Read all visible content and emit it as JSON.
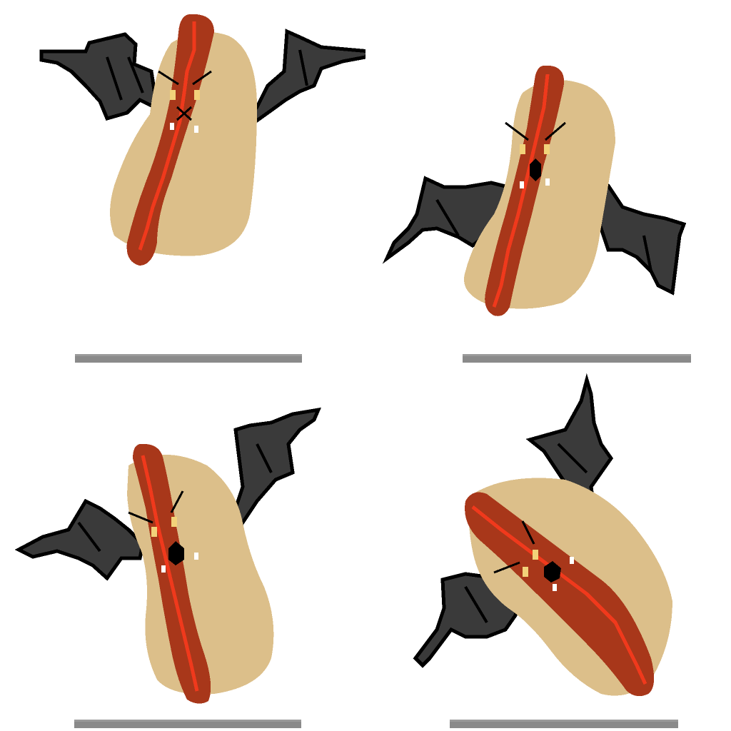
{
  "sheet": {
    "sprite": "hotdog-bat",
    "frames": [
      {
        "id": "frame-1"
      },
      {
        "id": "frame-2"
      },
      {
        "id": "frame-3"
      },
      {
        "id": "frame-4"
      }
    ]
  },
  "colors": {
    "background": "#ffffff",
    "bun": "#dcbf8a",
    "sausage": "#a8371a",
    "sausage_highlight": "#f0391c",
    "wing": "#3a3a3a",
    "wing_outline": "#000000",
    "eye": "#f2d27a",
    "shadow": "#8a8a8a"
  },
  "icons": {
    "wing": "bat-wing-icon",
    "eye": "eye-icon"
  }
}
